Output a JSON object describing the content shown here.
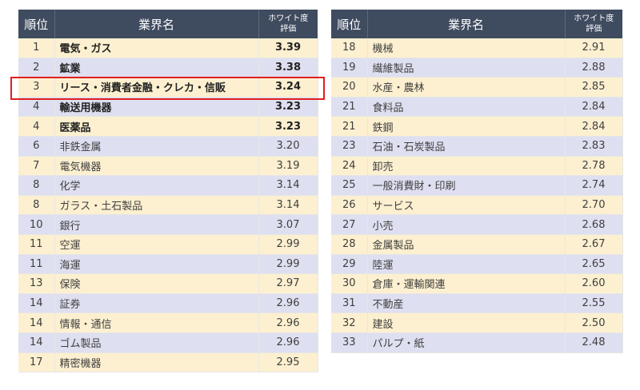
{
  "header": {
    "rank": "順位",
    "industry": "業界名",
    "score_line1": "ホワイト度",
    "score_line2": "評価"
  },
  "highlight_color": "#e02020",
  "header_color": "#3f4b5f",
  "row_colors": [
    "#fdf0d0",
    "#dedff0"
  ],
  "left_table": [
    {
      "rank": "1",
      "name": "電気・ガス",
      "score": "3.39",
      "bold": true
    },
    {
      "rank": "2",
      "name": "鉱業",
      "score": "3.38",
      "bold": true
    },
    {
      "rank": "3",
      "name": "リース・消費者金融・クレカ・信販",
      "score": "3.24",
      "bold": true,
      "highlighted": true
    },
    {
      "rank": "4",
      "name": "輸送用機器",
      "score": "3.23",
      "bold": true
    },
    {
      "rank": "4",
      "name": "医薬品",
      "score": "3.23",
      "bold": true
    },
    {
      "rank": "6",
      "name": "非鉄金属",
      "score": "3.20",
      "bold": false
    },
    {
      "rank": "7",
      "name": "電気機器",
      "score": "3.19",
      "bold": false
    },
    {
      "rank": "8",
      "name": "化学",
      "score": "3.14",
      "bold": false
    },
    {
      "rank": "8",
      "name": "ガラス・土石製品",
      "score": "3.14",
      "bold": false
    },
    {
      "rank": "10",
      "name": "銀行",
      "score": "3.07",
      "bold": false
    },
    {
      "rank": "11",
      "name": "空運",
      "score": "2.99",
      "bold": false
    },
    {
      "rank": "11",
      "name": "海運",
      "score": "2.99",
      "bold": false
    },
    {
      "rank": "13",
      "name": "保険",
      "score": "2.97",
      "bold": false
    },
    {
      "rank": "14",
      "name": "証券",
      "score": "2.96",
      "bold": false
    },
    {
      "rank": "14",
      "name": "情報・通信",
      "score": "2.96",
      "bold": false
    },
    {
      "rank": "14",
      "name": "ゴム製品",
      "score": "2.96",
      "bold": false
    },
    {
      "rank": "17",
      "name": "精密機器",
      "score": "2.95",
      "bold": false
    }
  ],
  "right_table": [
    {
      "rank": "18",
      "name": "機械",
      "score": "2.91"
    },
    {
      "rank": "19",
      "name": "繊維製品",
      "score": "2.88"
    },
    {
      "rank": "20",
      "name": "水産・農林",
      "score": "2.85"
    },
    {
      "rank": "21",
      "name": "食料品",
      "score": "2.84"
    },
    {
      "rank": "21",
      "name": "鉄鋼",
      "score": "2.84"
    },
    {
      "rank": "23",
      "name": "石油・石炭製品",
      "score": "2.83"
    },
    {
      "rank": "24",
      "name": "卸売",
      "score": "2.78"
    },
    {
      "rank": "25",
      "name": "一般消費財・印刷",
      "score": "2.74"
    },
    {
      "rank": "26",
      "name": "サービス",
      "score": "2.70"
    },
    {
      "rank": "27",
      "name": "小売",
      "score": "2.68"
    },
    {
      "rank": "28",
      "name": "金属製品",
      "score": "2.67"
    },
    {
      "rank": "29",
      "name": "陸運",
      "score": "2.65"
    },
    {
      "rank": "30",
      "name": "倉庫・運輸関連",
      "score": "2.60"
    },
    {
      "rank": "31",
      "name": "不動産",
      "score": "2.55"
    },
    {
      "rank": "32",
      "name": "建設",
      "score": "2.50"
    },
    {
      "rank": "33",
      "name": "パルプ・紙",
      "score": "2.48"
    }
  ]
}
